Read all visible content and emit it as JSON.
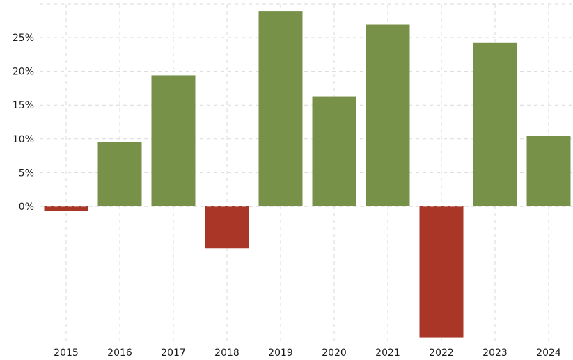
{
  "chart_data": {
    "type": "bar",
    "title": "",
    "xlabel": "",
    "ylabel": "",
    "categories": [
      "2015",
      "2016",
      "2017",
      "2018",
      "2019",
      "2020",
      "2021",
      "2022",
      "2023",
      "2024"
    ],
    "values": [
      -0.7,
      9.5,
      19.4,
      -6.2,
      28.9,
      16.3,
      26.9,
      -19.4,
      24.2,
      10.4
    ],
    "ylim": [
      -20,
      30
    ],
    "yticks": [
      0,
      5,
      10,
      15,
      20,
      25
    ],
    "ytick_labels": [
      "0%",
      "5%",
      "10%",
      "15%",
      "20%",
      "25%"
    ],
    "grid": true,
    "colors": {
      "positive": "#789148",
      "negative": "#a93626",
      "grid": "#d9d9d9",
      "text": "#1a1a1a"
    }
  }
}
